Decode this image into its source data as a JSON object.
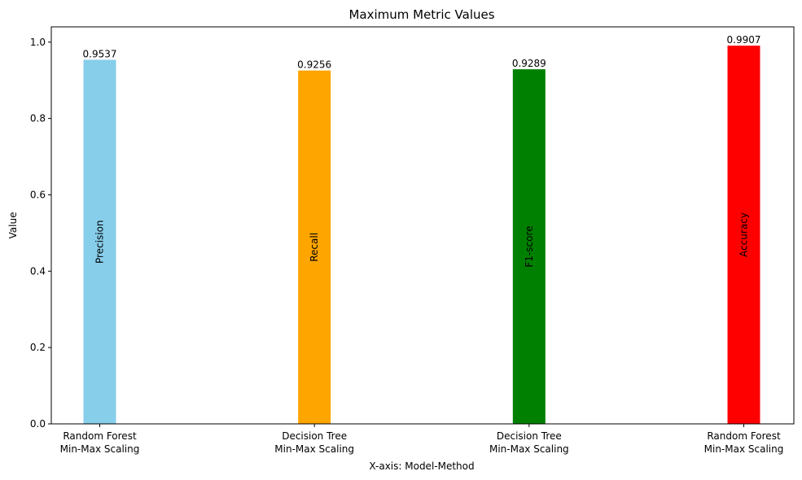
{
  "chart_data": {
    "type": "bar",
    "title": "Maximum Metric Values",
    "xlabel": "X-axis: Model-Method",
    "ylabel": "Value",
    "ylim": [
      0,
      1.04
    ],
    "yticks": [
      "0.0",
      "0.2",
      "0.4",
      "0.6",
      "0.8",
      "1.0"
    ],
    "grid": false,
    "legend": "none",
    "categories": [
      {
        "line1": "Random Forest",
        "line2": "Min-Max Scaling"
      },
      {
        "line1": "Decision Tree",
        "line2": "Min-Max Scaling"
      },
      {
        "line1": "Decision Tree",
        "line2": "Min-Max Scaling"
      },
      {
        "line1": "Random Forest",
        "line2": "Min-Max Scaling"
      }
    ],
    "values": [
      0.9537,
      0.9256,
      0.9289,
      0.9907
    ],
    "value_labels": [
      "0.9537",
      "0.9256",
      "0.9289",
      "0.9907"
    ],
    "metrics": [
      "Precision",
      "Recall",
      "F1-score",
      "Accuracy"
    ],
    "colors": [
      "#87ceeb",
      "#ffa500",
      "#008000",
      "#ff0000"
    ]
  }
}
